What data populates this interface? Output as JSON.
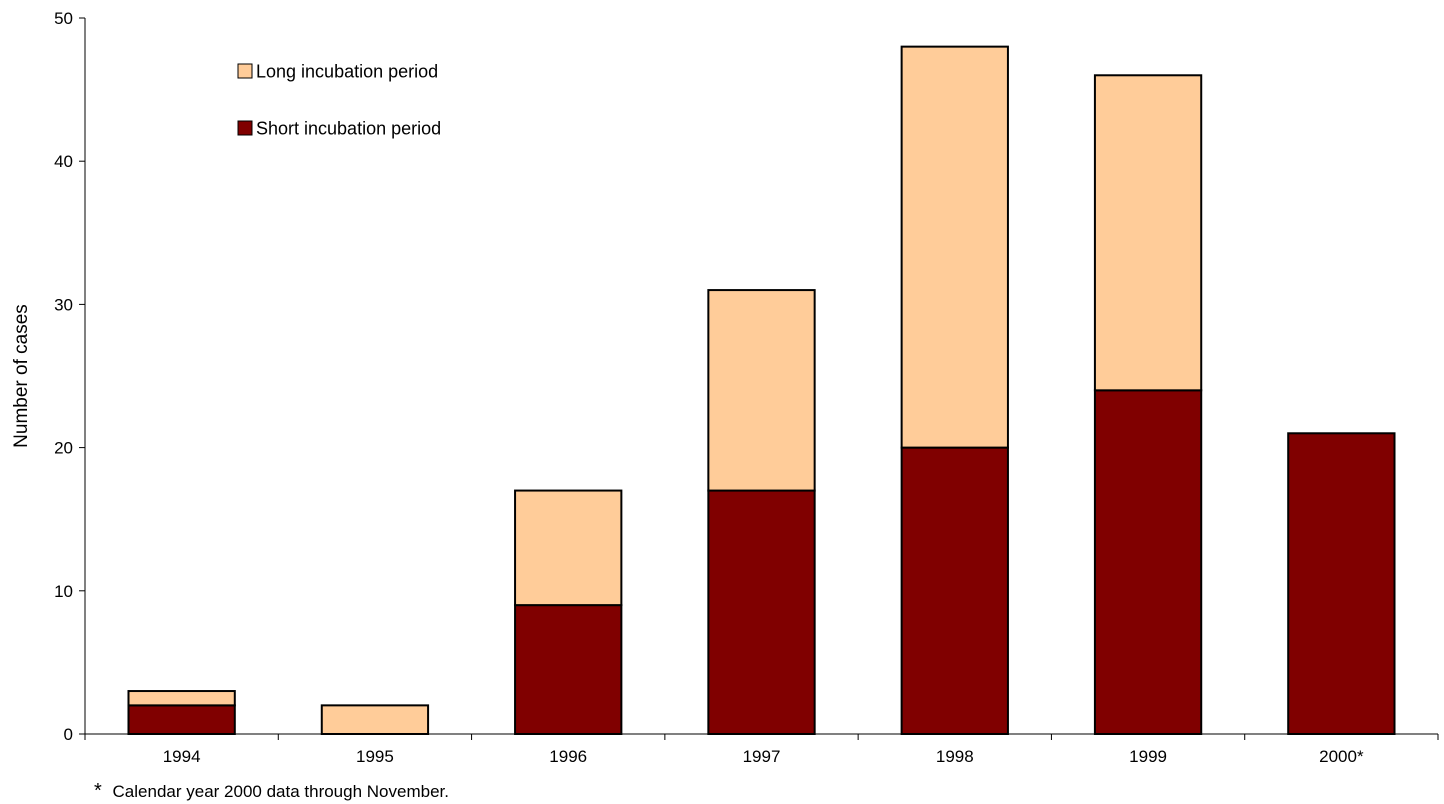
{
  "chart_data": {
    "type": "bar",
    "stacked": true,
    "categories": [
      "1994",
      "1995",
      "1996",
      "1997",
      "1998",
      "1999",
      "2000*"
    ],
    "series": [
      {
        "name": "Short incubation period",
        "color": "#800000",
        "values": [
          2,
          0,
          9,
          17,
          20,
          24,
          21
        ]
      },
      {
        "name": "Long incubation period",
        "color": "#FFCC99",
        "values": [
          1,
          2,
          8,
          14,
          28,
          22,
          0
        ]
      }
    ],
    "ylabel": "Number of cases",
    "xlabel": "",
    "ylim": [
      0,
      50
    ],
    "yticks": [
      0,
      10,
      20,
      30,
      40,
      50
    ],
    "grid": false,
    "legend_position": "top-left",
    "legend_order": [
      "Long incubation period",
      "Short incubation period"
    ],
    "footnote": {
      "marker": "*",
      "text": "Calendar year 2000 data through November."
    }
  }
}
